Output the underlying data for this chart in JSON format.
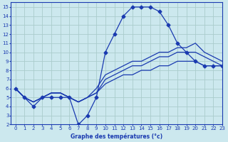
{
  "title": "Graphe des températures (°c)",
  "bg_color": "#cce8ee",
  "grid_color": "#aacccc",
  "line_color": "#1a3ab0",
  "xlim": [
    -0.5,
    23
  ],
  "ylim": [
    2,
    15.5
  ],
  "xticks": [
    0,
    1,
    2,
    3,
    4,
    5,
    6,
    7,
    8,
    9,
    10,
    11,
    12,
    13,
    14,
    15,
    16,
    17,
    18,
    19,
    20,
    21,
    22,
    23
  ],
  "yticks": [
    2,
    3,
    4,
    5,
    6,
    7,
    8,
    9,
    10,
    11,
    12,
    13,
    14,
    15
  ],
  "series": [
    {
      "x": [
        0,
        1,
        2,
        3,
        4,
        5,
        6,
        7,
        8,
        9,
        10,
        11,
        12,
        13,
        14,
        15,
        16,
        17,
        18,
        19,
        20,
        21,
        22,
        23
      ],
      "y": [
        6,
        5,
        4,
        5,
        5,
        5,
        5,
        2,
        3,
        5,
        10,
        12,
        14,
        15,
        15,
        15,
        14.5,
        13,
        11,
        10,
        9,
        8.5,
        8.5,
        8.5
      ],
      "marker": "D",
      "markersize": 2.5
    },
    {
      "x": [
        0,
        1,
        2,
        3,
        4,
        5,
        6,
        7,
        8,
        9,
        10,
        11,
        12,
        13,
        14,
        15,
        16,
        17,
        18,
        19,
        20,
        21,
        22,
        23
      ],
      "y": [
        6,
        5,
        4.5,
        5,
        5.5,
        5.5,
        5,
        4.5,
        5,
        5.5,
        6.5,
        7,
        7.5,
        7.5,
        8,
        8,
        8.5,
        8.5,
        9,
        9,
        9,
        8.5,
        8.5,
        8.5
      ],
      "marker": null
    },
    {
      "x": [
        0,
        1,
        2,
        3,
        4,
        5,
        6,
        7,
        8,
        9,
        10,
        11,
        12,
        13,
        14,
        15,
        16,
        17,
        18,
        19,
        20,
        21,
        22,
        23
      ],
      "y": [
        6,
        5,
        4.5,
        5,
        5.5,
        5.5,
        5,
        4.5,
        5,
        5.5,
        7,
        7.5,
        8,
        8.5,
        8.5,
        9,
        9.5,
        9.5,
        10,
        10,
        10,
        9.5,
        9,
        8.5
      ],
      "marker": null
    },
    {
      "x": [
        0,
        1,
        2,
        3,
        4,
        5,
        6,
        7,
        8,
        9,
        10,
        11,
        12,
        13,
        14,
        15,
        16,
        17,
        18,
        19,
        20,
        21,
        22,
        23
      ],
      "y": [
        6,
        5,
        4.5,
        5,
        5.5,
        5.5,
        5,
        4.5,
        5,
        6,
        7.5,
        8,
        8.5,
        9,
        9,
        9.5,
        10,
        10,
        10.5,
        10.5,
        11,
        10,
        9.5,
        9
      ],
      "marker": null
    }
  ]
}
